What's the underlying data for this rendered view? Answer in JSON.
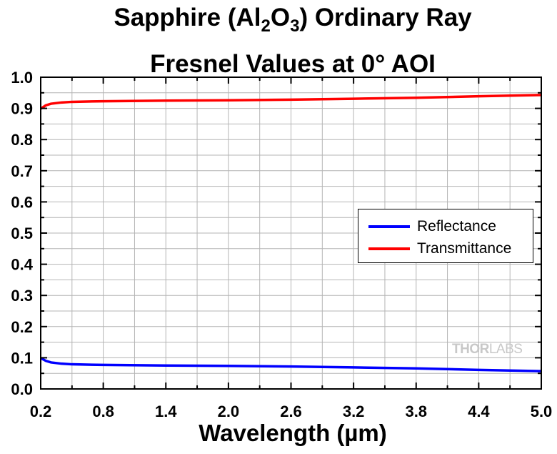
{
  "chart_data": {
    "type": "line",
    "title_part1": "Sapphire (Al",
    "title_sub1": "2",
    "title_part2": "O",
    "title_sub2": "3",
    "title_part3": ") Ordinary Ray",
    "subtitle": "Fresnel Values at 0° AOI",
    "xlabel": "Wavelength (µm)",
    "ylabel": "",
    "xlim": [
      0.2,
      5.0
    ],
    "ylim": [
      0.0,
      1.0
    ],
    "x_ticks": [
      "0.2",
      "0.8",
      "1.4",
      "2.0",
      "2.6",
      "3.2",
      "3.8",
      "4.4",
      "5.0"
    ],
    "y_ticks": [
      "0.0",
      "0.1",
      "0.2",
      "0.3",
      "0.4",
      "0.5",
      "0.6",
      "0.7",
      "0.8",
      "0.9",
      "1.0"
    ],
    "grid": true,
    "legend_position": "right",
    "series": [
      {
        "name": "Reflectance",
        "color": "#0000ff",
        "x": [
          0.2,
          0.25,
          0.3,
          0.4,
          0.5,
          0.8,
          1.4,
          2.0,
          2.6,
          3.2,
          3.8,
          4.4,
          5.0
        ],
        "y": [
          0.099,
          0.09,
          0.085,
          0.081,
          0.079,
          0.077,
          0.075,
          0.074,
          0.072,
          0.069,
          0.066,
          0.061,
          0.057
        ]
      },
      {
        "name": "Transmittance",
        "color": "#ff0000",
        "x": [
          0.2,
          0.25,
          0.3,
          0.4,
          0.5,
          0.8,
          1.4,
          2.0,
          2.6,
          3.2,
          3.8,
          4.4,
          5.0
        ],
        "y": [
          0.899,
          0.91,
          0.915,
          0.919,
          0.921,
          0.923,
          0.925,
          0.926,
          0.928,
          0.931,
          0.934,
          0.939,
          0.943
        ]
      }
    ]
  },
  "watermark": {
    "bold": "THOR",
    "thin": "LABS"
  }
}
